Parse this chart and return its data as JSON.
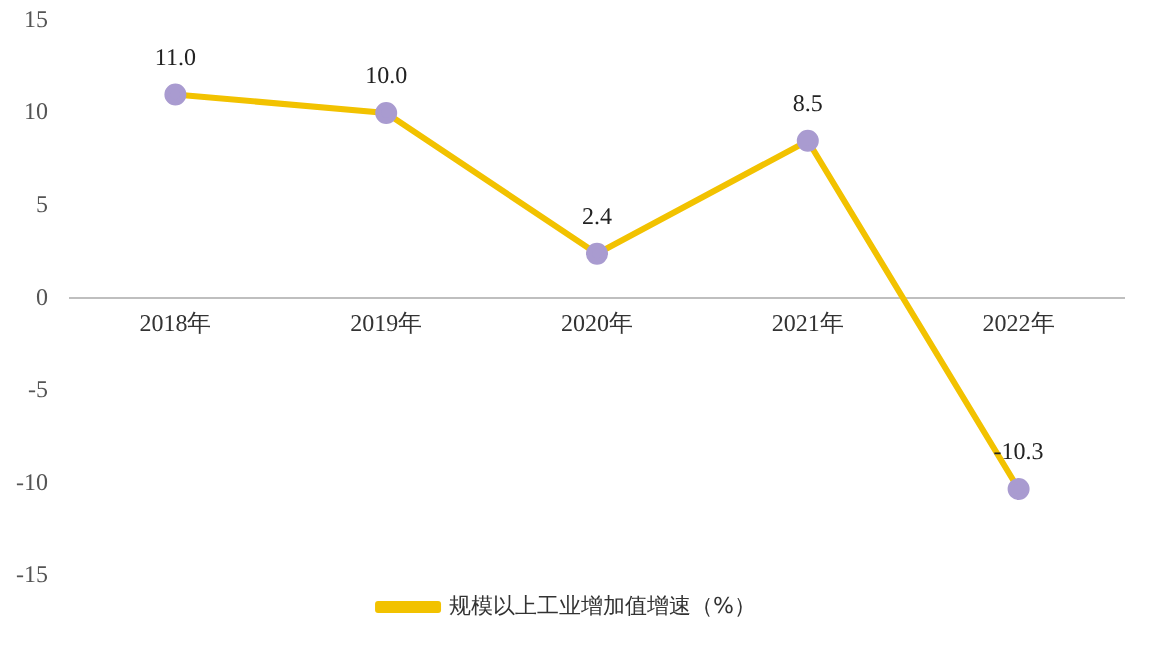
{
  "chart_data": {
    "type": "line",
    "categories": [
      "2018年",
      "2019年",
      "2020年",
      "2021年",
      "2022年"
    ],
    "series": [
      {
        "name": "规模以上工业增加值增速（%）",
        "color": "#f2c200",
        "values": [
          11.0,
          10.0,
          2.4,
          8.5,
          -10.3
        ],
        "value_labels": [
          "11.0",
          "10.0",
          "2.4",
          "8.5",
          "-10.3"
        ]
      }
    ],
    "ylim": [
      -15,
      15
    ],
    "yticks": [
      -15,
      -10,
      -5,
      0,
      5,
      10,
      15
    ],
    "grid": false,
    "legend": "bottom",
    "marker": "circle"
  }
}
